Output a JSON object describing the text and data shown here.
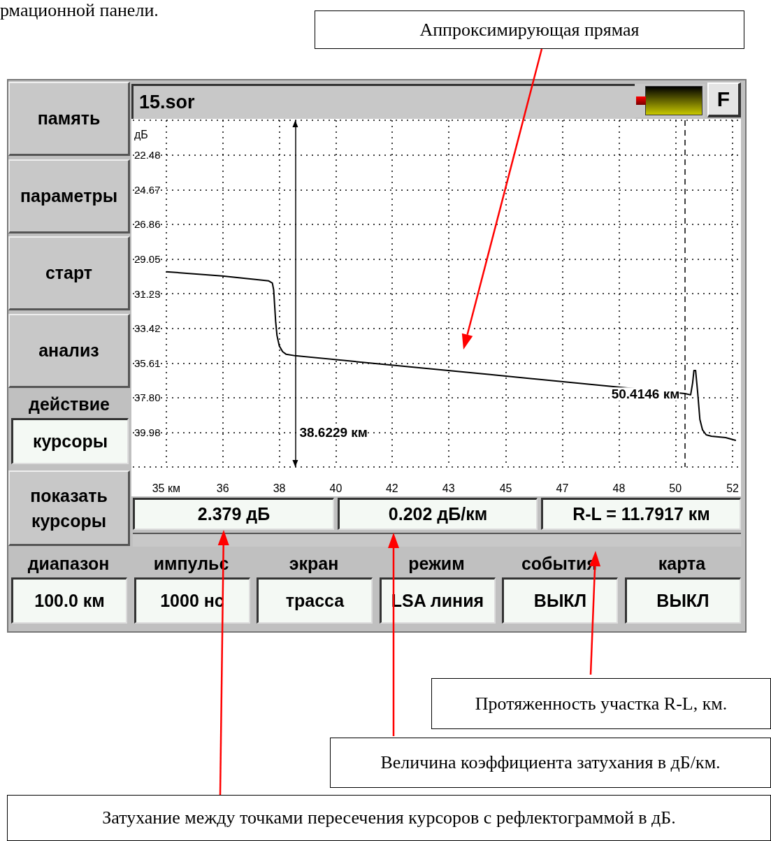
{
  "chart_data": {
    "type": "line",
    "title": "15.sor",
    "ylabel": "дБ",
    "x": [
      34.72,
      36.41,
      37.82,
      37.93,
      37.97,
      38.03,
      38.07,
      38.14,
      38.24,
      38.35,
      38.62,
      44.52,
      50.41,
      50.58,
      50.64,
      50.68,
      50.73,
      50.79,
      50.86,
      50.94,
      51.05,
      51.21,
      51.64,
      51.95
    ],
    "series": [
      {
        "color": "#000000",
        "values": [
          29.85,
          30.12,
          30.43,
          30.56,
          31.0,
          32.99,
          33.87,
          34.53,
          34.89,
          35.06,
          35.15,
          36.34,
          37.54,
          37.62,
          36.87,
          36.08,
          36.08,
          37.4,
          39.17,
          39.83,
          40.14,
          40.23,
          40.32,
          40.49
        ]
      }
    ],
    "xlim": [
      33.71,
      52.02
    ],
    "xticks": [
      {
        "value": 34.72,
        "label": "35 км"
      },
      {
        "value": 36.43,
        "label": "36"
      },
      {
        "value": 38.14,
        "label": "38"
      },
      {
        "value": 39.85,
        "label": "40"
      },
      {
        "value": 41.55,
        "label": "42"
      },
      {
        "value": 43.26,
        "label": "43"
      },
      {
        "value": 44.99,
        "label": "45"
      },
      {
        "value": 46.7,
        "label": "47"
      },
      {
        "value": 48.41,
        "label": "48"
      },
      {
        "value": 50.12,
        "label": "50"
      },
      {
        "value": 51.85,
        "label": "52"
      }
    ],
    "ylim": [
      42.17,
      20.29
    ],
    "yticks": [
      {
        "value": 20.29,
        "label": null
      },
      22.48,
      24.67,
      26.86,
      29.05,
      31.23,
      33.42,
      35.61,
      {
        "value": 37.8,
        "label": "37.80"
      },
      39.98,
      {
        "value": 42.17,
        "label": null
      }
    ],
    "grid": true,
    "ref_lines": [
      {
        "axis": "x",
        "value": 38.6229,
        "label": "38.6229 км",
        "line_style": "solid"
      },
      {
        "axis": "x",
        "value": 50.4146,
        "label": "50.4146 км",
        "line_style": "dashed"
      }
    ],
    "annotations": [
      "рмационной панели.",
      "Аппроксимирующая прямая",
      "память",
      "параметры",
      "старт",
      "анализ",
      "действие",
      "курсоры",
      "показать курсоры",
      "2.379 дБ",
      "0.202 дБ/км",
      "R-L = 11.7917 км",
      "диапазон",
      "100.0 км",
      "импульс",
      "1000 нс",
      "экран",
      "трасса",
      "режим",
      "LSA линия",
      "события",
      "ВЫКЛ",
      "карта",
      "ВЫКЛ",
      "Протяженность участка  R-L, км.",
      "Величина коэффициента затухания в дБ/км.",
      "Затухание между точками пересечения курсоров с рефлектограммой в дБ.",
      "F"
    ]
  }
}
